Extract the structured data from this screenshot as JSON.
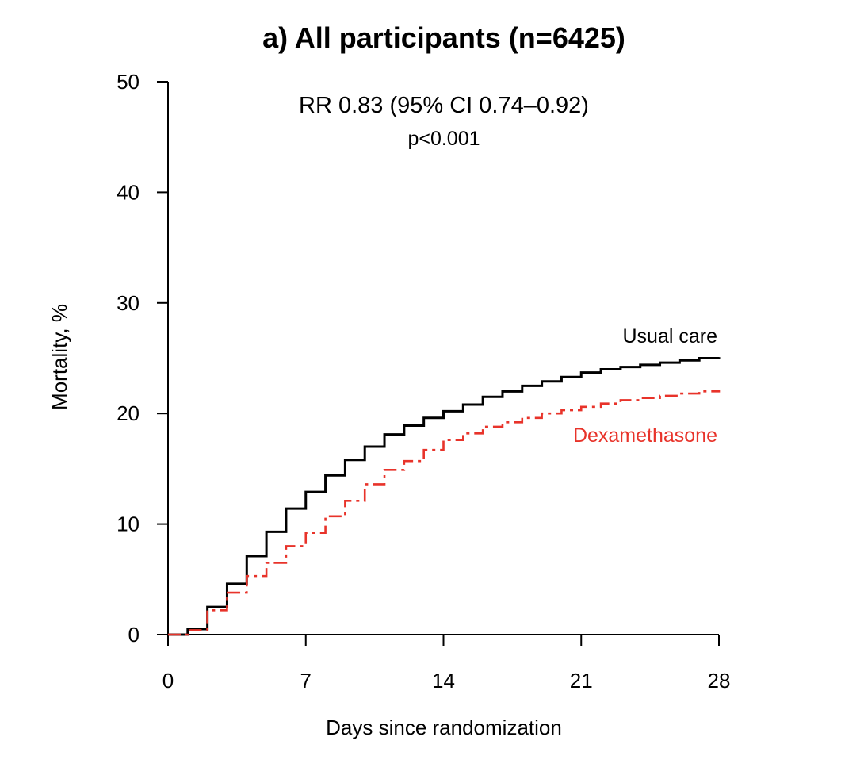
{
  "chart_data": {
    "type": "line",
    "step": true,
    "title": "a) All participants (n=6425)",
    "annotation_line1": "RR 0.83 (95% CI 0.74–0.92)",
    "annotation_line2": "p<0.001",
    "xlabel": "Days since randomization",
    "ylabel": "Mortality, %",
    "xlim": [
      0,
      28
    ],
    "ylim": [
      0,
      50
    ],
    "xticks": [
      0,
      7,
      14,
      21,
      28
    ],
    "yticks": [
      0,
      10,
      20,
      30,
      40,
      50
    ],
    "grid": false,
    "series": [
      {
        "name": "Usual care",
        "color": "#000000",
        "dash": "solid",
        "x": [
          0,
          1,
          2,
          3,
          4,
          5,
          6,
          7,
          8,
          9,
          10,
          11,
          12,
          13,
          14,
          15,
          16,
          17,
          18,
          19,
          20,
          21,
          22,
          23,
          24,
          25,
          26,
          27,
          28
        ],
        "y": [
          0,
          0.5,
          2.5,
          4.6,
          7.1,
          9.3,
          11.4,
          12.9,
          14.4,
          15.8,
          17.0,
          18.1,
          18.9,
          19.6,
          20.2,
          20.8,
          21.5,
          22.0,
          22.5,
          22.9,
          23.3,
          23.7,
          24.0,
          24.2,
          24.4,
          24.6,
          24.8,
          25.0,
          25.1
        ]
      },
      {
        "name": "Dexamethasone",
        "color": "#e8332a",
        "dash": "dashdot",
        "x": [
          0,
          1,
          2,
          3,
          4,
          5,
          6,
          7,
          8,
          9,
          10,
          11,
          12,
          13,
          14,
          15,
          16,
          17,
          18,
          19,
          20,
          21,
          22,
          23,
          24,
          25,
          26,
          27,
          28
        ],
        "y": [
          0,
          0.4,
          2.2,
          3.8,
          5.3,
          6.5,
          8.0,
          9.2,
          10.7,
          12.1,
          13.6,
          14.9,
          15.7,
          16.7,
          17.6,
          18.2,
          18.8,
          19.2,
          19.6,
          20.0,
          20.3,
          20.6,
          20.9,
          21.2,
          21.4,
          21.6,
          21.8,
          22.0,
          22.1
        ]
      }
    ]
  }
}
